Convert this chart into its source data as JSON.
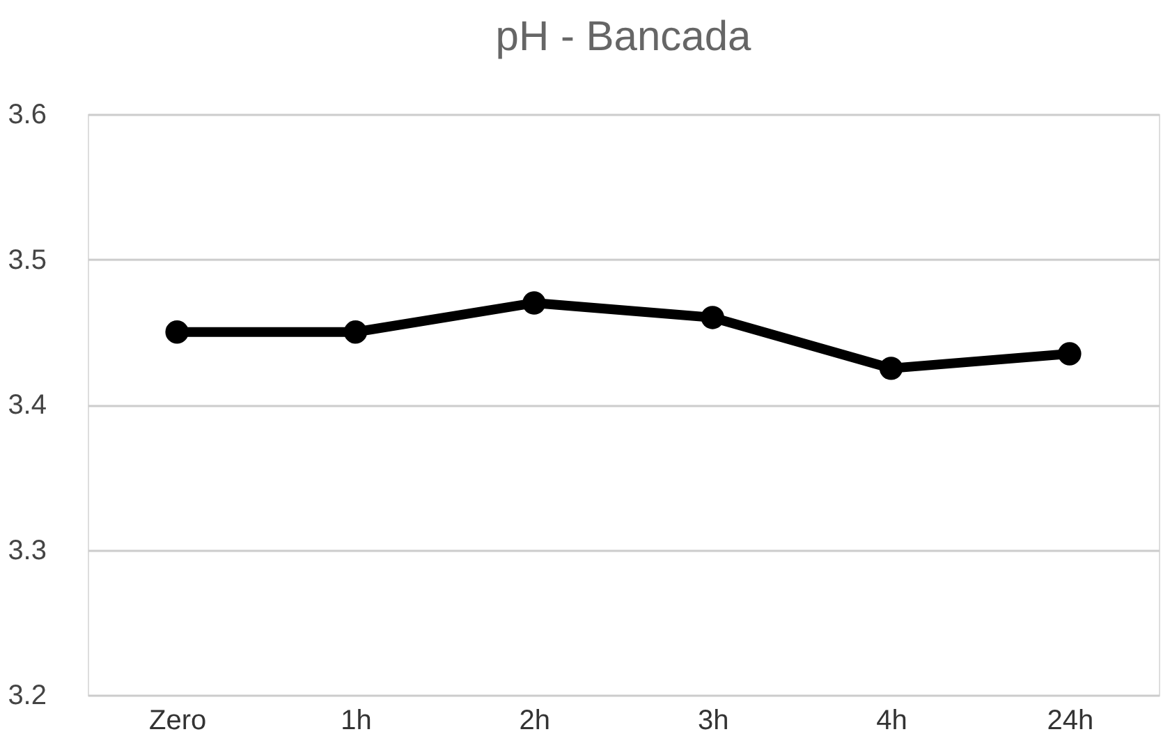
{
  "chart_data": {
    "type": "line",
    "title": "pH - Bancada",
    "categories": [
      "Zero",
      "1h",
      "2h",
      "3h",
      "4h",
      "24h"
    ],
    "series": [
      {
        "color": "#000000",
        "values": [
          3.45,
          3.45,
          3.47,
          3.46,
          3.425,
          3.435
        ]
      }
    ],
    "ylim": [
      3.2,
      3.6
    ],
    "yticks": [
      3.2,
      3.3,
      3.4,
      3.5,
      3.6
    ],
    "grid": "y",
    "legend": false,
    "marker": "circle",
    "line_style": "solid"
  }
}
